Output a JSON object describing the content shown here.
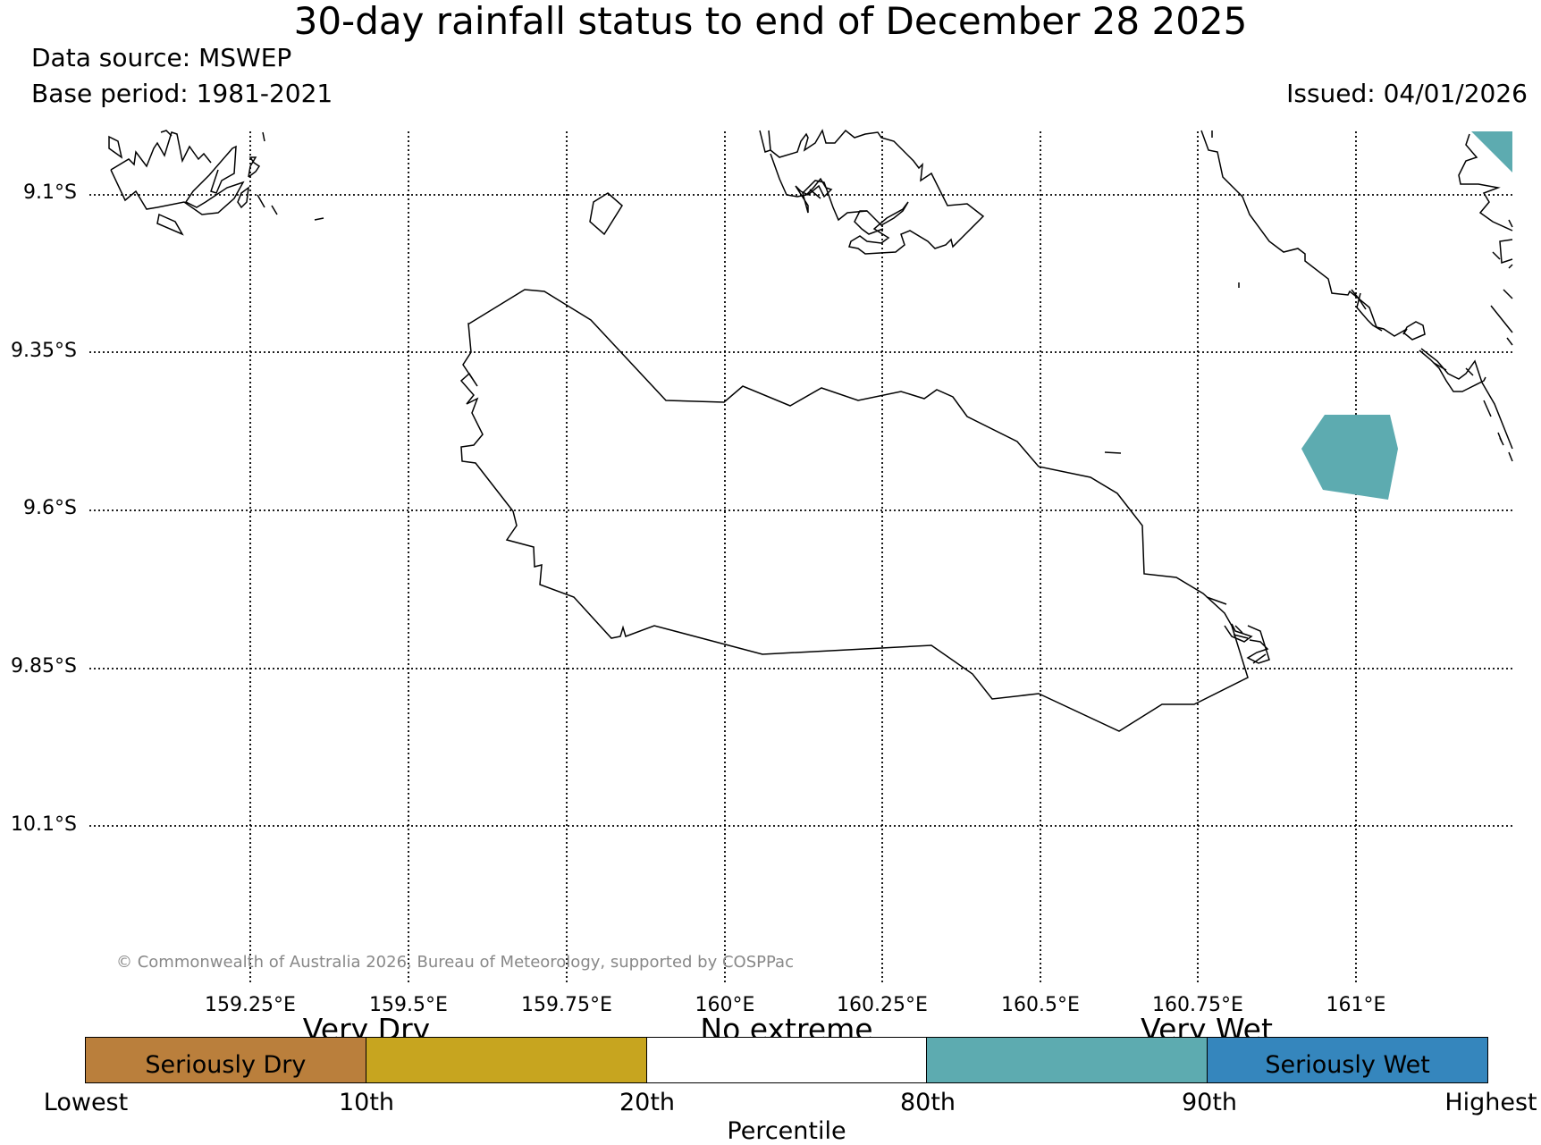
{
  "header": {
    "title": "30-day rainfall status to end of December 28 2025",
    "data_source": "Data source: MSWEP",
    "base_period": "Base period: 1981-2021",
    "issued": "Issued: 04/01/2026"
  },
  "map": {
    "lat_labels": [
      "9.1°S",
      "9.35°S",
      "9.6°S",
      "9.85°S",
      "10.1°S"
    ],
    "lon_labels": [
      "159.25°E",
      "159.5°E",
      "159.75°E",
      "160°E",
      "160.25°E",
      "160.5°E",
      "160.75°E",
      "161°E"
    ],
    "copyright": "© Commonwealth of Australia 2026, Bureau of Meteorology, supported by COSPPac",
    "gridlines": "dotted",
    "wet_shading_color": "#5dabb0",
    "coastline_color": "#000000"
  },
  "legend": {
    "segments": [
      {
        "label": "Seriously Dry",
        "color": "#ba7f3c"
      },
      {
        "label": "",
        "color": "#c7a51f"
      },
      {
        "label": "",
        "color": "#ffffff"
      },
      {
        "label": "",
        "color": "#5dabb0"
      },
      {
        "label": "Seriously Wet",
        "color": "#3586bd"
      }
    ],
    "categories": [
      "Very Dry",
      "No extreme",
      "Very Wet"
    ],
    "ticks": [
      "Lowest",
      "10th",
      "20th",
      "80th",
      "90th",
      "Highest"
    ],
    "axis_title": "Percentile"
  }
}
